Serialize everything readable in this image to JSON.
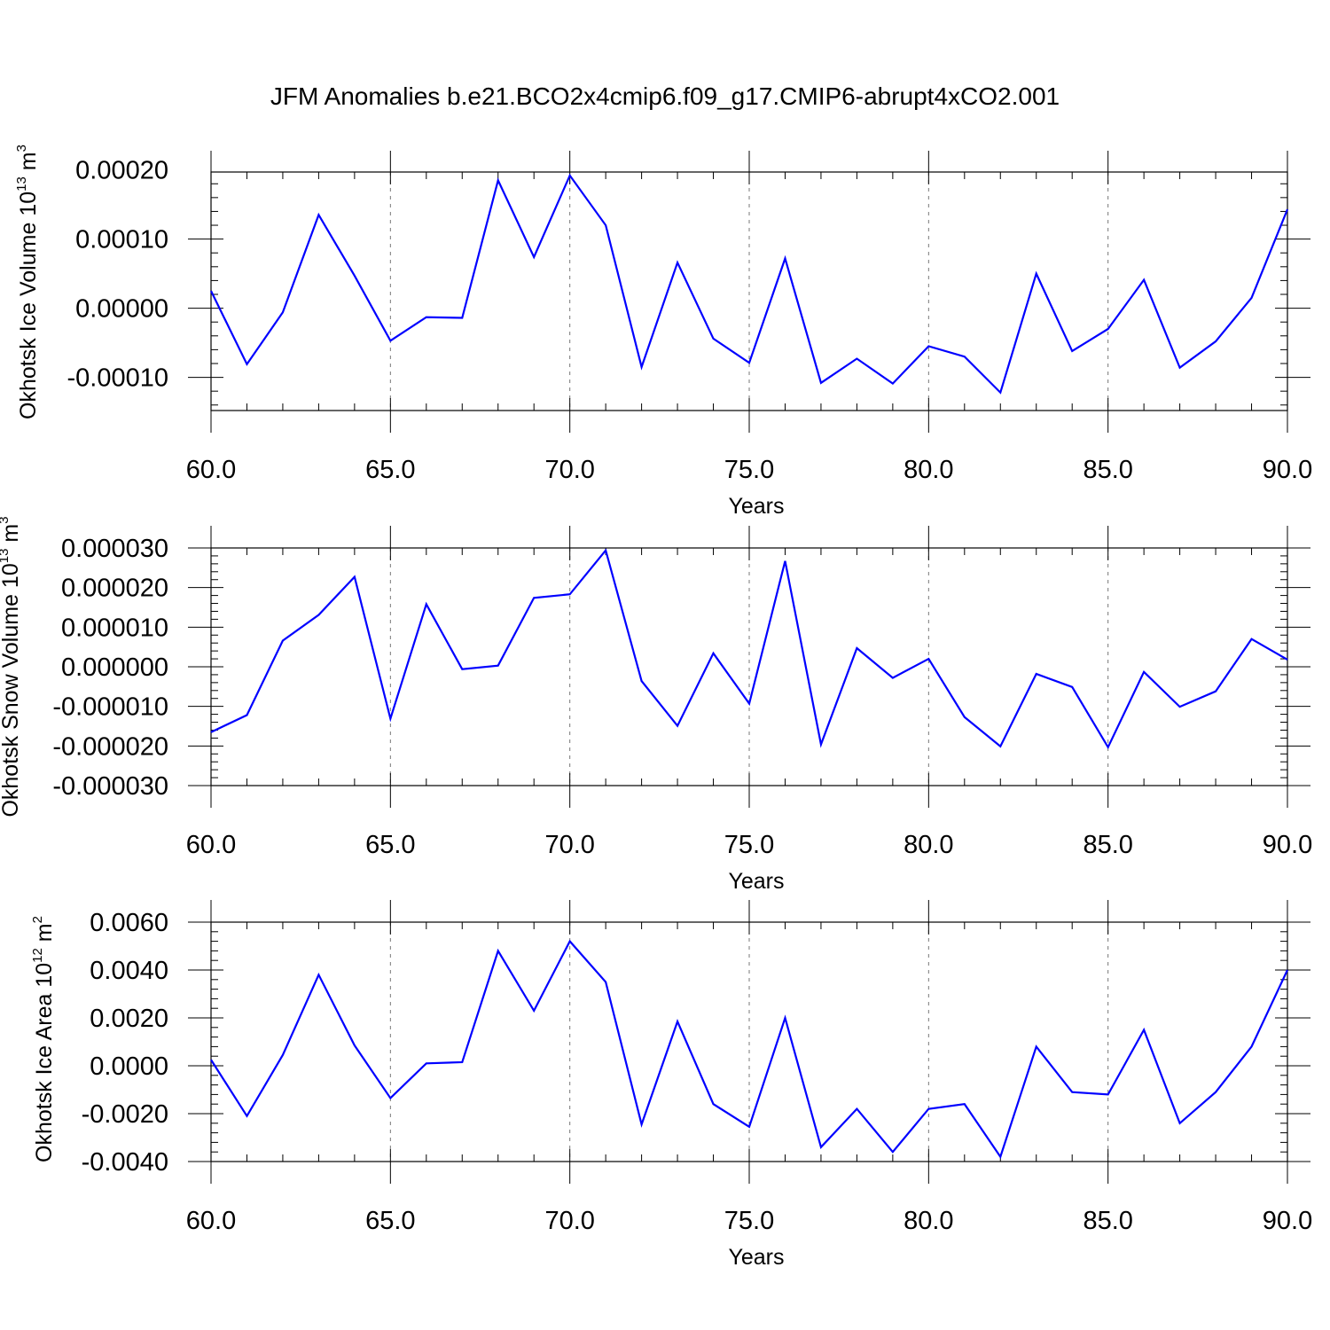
{
  "title": "JFM Anomalies b.e21.BCO2x4cmip6.f09_g17.CMIP6-abrupt4xCO2.001",
  "colors": {
    "line": "#0000ff",
    "axis": "#000000",
    "grid": "#777777"
  },
  "chart_data": [
    {
      "type": "line",
      "ylabel": {
        "text": "Okhotsk Ice Volume 10",
        "exp": "13",
        "unit": " m",
        "unit_exp": "3"
      },
      "xlabel": "Years",
      "xlim": [
        60,
        90
      ],
      "ylim": [
        -0.000148,
        0.000197
      ],
      "xticks": [
        60,
        65,
        70,
        75,
        80,
        85,
        90
      ],
      "xtick_labels": [
        "60.0",
        "65.0",
        "70.0",
        "75.0",
        "80.0",
        "85.0",
        "90.0"
      ],
      "yticks": [
        -0.0001,
        0.0,
        0.0001,
        0.0002
      ],
      "ytick_labels": [
        "-0.00010",
        "0.00000",
        "0.00010",
        "0.00020"
      ],
      "grid": "vertical dashed at major x ticks",
      "series": [
        {
          "x": [
            60,
            61,
            62,
            63,
            64,
            65,
            66,
            67,
            68,
            69,
            70,
            71,
            72,
            73,
            74,
            75,
            76,
            77,
            78,
            79,
            80,
            81,
            82,
            83,
            84,
            85,
            86,
            87,
            88,
            89,
            90
          ],
          "values": [
            2.5e-05,
            -8.1e-05,
            -6e-06,
            0.000135,
            4.7e-05,
            -4.7e-05,
            -1.3e-05,
            -1.4e-05,
            0.000185,
            7.4e-05,
            0.000192,
            0.00012,
            -8.5e-05,
            6.6e-05,
            -4.4e-05,
            -7.9e-05,
            7.2e-05,
            -0.000108,
            -7.3e-05,
            -0.000109,
            -5.5e-05,
            -7e-05,
            -0.000122,
            5e-05,
            -6.2e-05,
            -3e-05,
            4.1e-05,
            -8.6e-05,
            -4.8e-05,
            1.5e-05,
            0.000143
          ]
        }
      ]
    },
    {
      "type": "line",
      "ylabel": {
        "text": "Okhotsk Snow Volume 10",
        "exp": "13",
        "unit": " m",
        "unit_exp": "3"
      },
      "xlabel": "Years",
      "xlim": [
        60,
        90
      ],
      "ylim": [
        -3e-05,
        3e-05
      ],
      "xticks": [
        60,
        65,
        70,
        75,
        80,
        85,
        90
      ],
      "xtick_labels": [
        "60.0",
        "65.0",
        "70.0",
        "75.0",
        "80.0",
        "85.0",
        "90.0"
      ],
      "yticks": [
        -3e-05,
        -2e-05,
        -1e-05,
        0.0,
        1e-05,
        2e-05,
        3e-05
      ],
      "ytick_labels": [
        "-0.000030",
        "-0.000020",
        "-0.000010",
        "0.000000",
        "0.000010",
        "0.000020",
        "0.000030"
      ],
      "grid": "vertical dashed at major x ticks",
      "series": [
        {
          "x": [
            60,
            61,
            62,
            63,
            64,
            65,
            66,
            67,
            68,
            69,
            70,
            71,
            72,
            73,
            74,
            75,
            76,
            77,
            78,
            79,
            80,
            81,
            82,
            83,
            84,
            85,
            86,
            87,
            88,
            89,
            90
          ],
          "values": [
            -1.65e-05,
            -1.22e-05,
            6.6e-06,
            1.31e-05,
            2.27e-05,
            -1.31e-05,
            1.58e-05,
            -6e-07,
            3e-07,
            1.74e-05,
            1.83e-05,
            2.94e-05,
            -3.6e-06,
            -1.49e-05,
            3.4e-06,
            -9.3e-06,
            2.67e-05,
            -1.96e-05,
            4.7e-06,
            -2.8e-06,
            2e-06,
            -1.27e-05,
            -2.01e-05,
            -1.8e-06,
            -5.1e-06,
            -2.03e-05,
            -1.3e-06,
            -1.01e-05,
            -6.2e-06,
            7e-06,
            1.8e-06
          ]
        }
      ]
    },
    {
      "type": "line",
      "ylabel": {
        "text": "Okhotsk Ice Area 10",
        "exp": "12",
        "unit": " m",
        "unit_exp": "2"
      },
      "xlabel": "Years",
      "xlim": [
        60,
        90
      ],
      "ylim": [
        -0.004,
        0.006
      ],
      "xticks": [
        60,
        65,
        70,
        75,
        80,
        85,
        90
      ],
      "xtick_labels": [
        "60.0",
        "65.0",
        "70.0",
        "75.0",
        "80.0",
        "85.0",
        "90.0"
      ],
      "yticks": [
        -0.004,
        -0.002,
        0.0,
        0.002,
        0.004,
        0.006
      ],
      "ytick_labels": [
        "-0.0040",
        "-0.0020",
        "0.0000",
        "0.0020",
        "0.0040",
        "0.0060"
      ],
      "grid": "vertical dashed at major x ticks",
      "series": [
        {
          "x": [
            60,
            61,
            62,
            63,
            64,
            65,
            66,
            67,
            68,
            69,
            70,
            71,
            72,
            73,
            74,
            75,
            76,
            77,
            78,
            79,
            80,
            81,
            82,
            83,
            84,
            85,
            86,
            87,
            88,
            89,
            90
          ],
          "values": [
            0.00025,
            -0.0021,
            0.00045,
            0.0038,
            0.00085,
            -0.00135,
            0.0001,
            0.00015,
            0.0048,
            0.0023,
            0.0052,
            0.0035,
            -0.00245,
            0.00185,
            -0.0016,
            -0.00255,
            0.002,
            -0.0034,
            -0.0018,
            -0.0036,
            -0.0018,
            -0.0016,
            -0.0038,
            0.0008,
            -0.0011,
            -0.0012,
            0.0015,
            -0.0024,
            -0.0011,
            0.0008,
            0.004
          ]
        }
      ]
    }
  ]
}
